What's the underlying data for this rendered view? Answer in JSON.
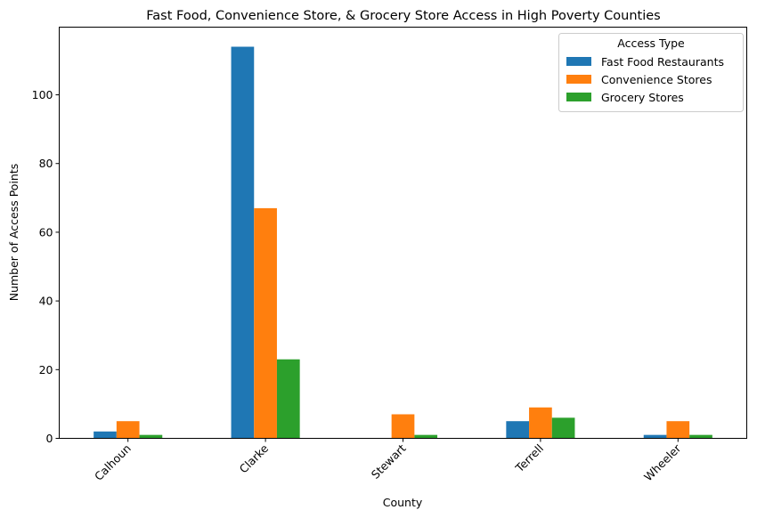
{
  "chart_data": {
    "type": "bar",
    "title": "Fast Food, Convenience Store, & Grocery Store Access in High Poverty Counties",
    "xlabel": "County",
    "ylabel": "Number of Access Points",
    "categories": [
      "Calhoun",
      "Clarke",
      "Stewart",
      "Terrell",
      "Wheeler"
    ],
    "series": [
      {
        "name": "Fast Food Restaurants",
        "color": "#1f77b4",
        "values": [
          2,
          114,
          0,
          5,
          1
        ]
      },
      {
        "name": "Convenience Stores",
        "color": "#ff7f0e",
        "values": [
          5,
          67,
          7,
          9,
          5
        ]
      },
      {
        "name": "Grocery Stores",
        "color": "#2ca02c",
        "values": [
          1,
          23,
          1,
          6,
          1
        ]
      }
    ],
    "ylim": [
      0,
      119.7
    ],
    "yticks": [
      0,
      20,
      40,
      60,
      80,
      100
    ],
    "legend": {
      "title": "Access Type",
      "position": "top-right"
    },
    "grid": false
  }
}
